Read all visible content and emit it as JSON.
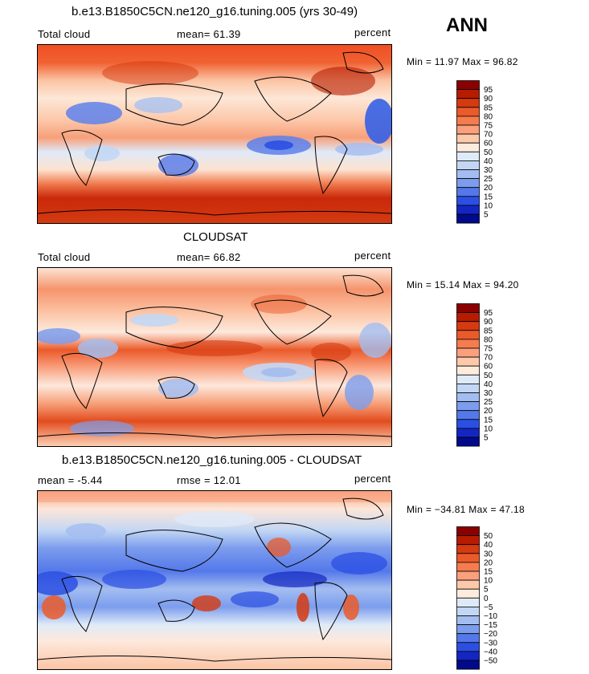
{
  "season": "ANN",
  "panels": [
    {
      "title": "b.e13.B1850C5CN.ne120_g16.tuning.005 (yrs 30-49)",
      "left_label": "Total cloud",
      "mean_label": "mean=   61.39",
      "units": "percent",
      "minmax": "Min =  11.97 Max =  96.82"
    },
    {
      "title": "CLOUDSAT",
      "left_label": "Total cloud",
      "mean_label": "mean=   66.82",
      "units": "percent",
      "minmax": "Min =  15.14 Max =  94.20"
    },
    {
      "title": "b.e13.B1850C5CN.ne120_g16.tuning.005 - CLOUDSAT",
      "left_label": "mean =   -5.44",
      "mean_label": "rmse =   12.01",
      "units": "percent",
      "minmax": "Min = −34.81 Max =  47.18"
    }
  ],
  "colorbars": {
    "abs": {
      "labels": [
        "95",
        "90",
        "85",
        "80",
        "75",
        "70",
        "60",
        "50",
        "40",
        "30",
        "25",
        "20",
        "15",
        "10",
        "5"
      ],
      "colors": [
        "#8b0000",
        "#b71c00",
        "#d53a10",
        "#ea5a2a",
        "#f57c4e",
        "#fba07c",
        "#fcc9aa",
        "#fdecdd",
        "#dfeaf8",
        "#c3d7f4",
        "#a3bdf0",
        "#7c9ded",
        "#5478ea",
        "#2b4fe3",
        "#1326c2",
        "#010a8a"
      ]
    },
    "diff": {
      "labels": [
        "50",
        "40",
        "30",
        "20",
        "15",
        "10",
        "5",
        "0",
        "−5",
        "−10",
        "−15",
        "−20",
        "−30",
        "−40",
        "−50"
      ],
      "colors": [
        "#8b0000",
        "#b71c00",
        "#d53a10",
        "#ea5a2a",
        "#f57c4e",
        "#fba07c",
        "#fcc9aa",
        "#fdecdd",
        "#dfeaf8",
        "#c3d7f4",
        "#a3bdf0",
        "#7c9ded",
        "#5478ea",
        "#2b4fe3",
        "#1326c2",
        "#010a8a"
      ]
    }
  },
  "chart_data": {
    "type": "heatmap",
    "description_scope": "global maps of annual-mean total cloud fraction (percent)",
    "maps": [
      {
        "name": "b.e13.B1850C5CN.ne120_g16.tuning.005 (yrs 30-49)",
        "variable": "Total cloud",
        "mean": 61.39,
        "min": 11.97,
        "max": 96.82,
        "units": "percent"
      },
      {
        "name": "CLOUDSAT",
        "variable": "Total cloud",
        "mean": 66.82,
        "min": 15.14,
        "max": 94.2,
        "units": "percent"
      },
      {
        "name": "b.e13.B1850C5CN.ne120_g16.tuning.005 - CLOUDSAT",
        "mean": -5.44,
        "rmse": 12.01,
        "min": -34.81,
        "max": 47.18,
        "units": "percent"
      }
    ],
    "contour_levels_abs": [
      5,
      10,
      15,
      20,
      25,
      30,
      40,
      50,
      60,
      70,
      75,
      80,
      85,
      90,
      95
    ],
    "contour_levels_diff": [
      -50,
      -40,
      -30,
      -20,
      -15,
      -10,
      -5,
      0,
      5,
      10,
      15,
      20,
      30,
      40,
      50
    ]
  }
}
